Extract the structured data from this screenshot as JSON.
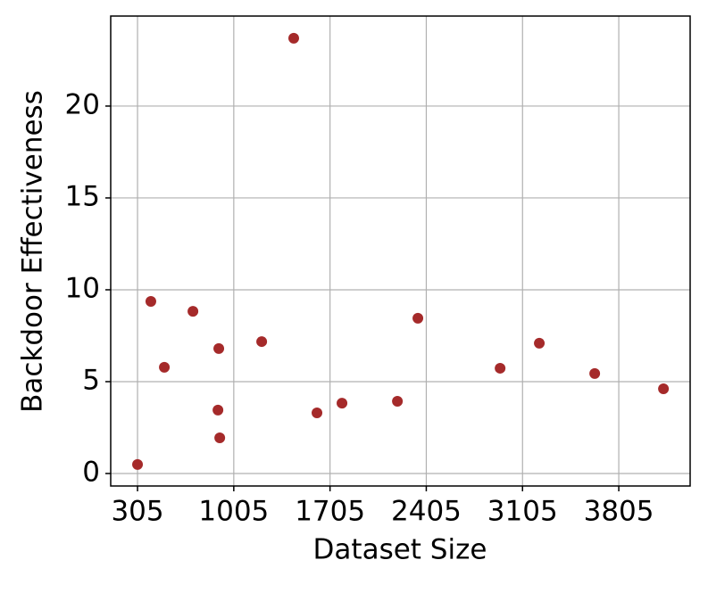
{
  "chart_data": {
    "type": "scatter",
    "xlabel": "Dataset Size",
    "ylabel": "Backdoor Effectiveness",
    "x": [
      305,
      402,
      500,
      708,
      896,
      890,
      903,
      1208,
      1441,
      1610,
      1792,
      2195,
      2344,
      2942,
      3227,
      3630,
      4130
    ],
    "y": [
      0.49,
      9.37,
      5.78,
      8.83,
      6.8,
      3.45,
      1.94,
      7.18,
      23.69,
      3.3,
      3.83,
      3.93,
      8.45,
      5.73,
      7.09,
      5.44,
      4.61
    ],
    "color": "#a52a2a",
    "xlim": [
      110,
      4324
    ],
    "ylim": [
      -0.68,
      24.9
    ],
    "xticks": [
      305,
      1005,
      1705,
      2405,
      3105,
      3805
    ],
    "yticks": [
      0,
      5,
      10,
      15,
      20
    ],
    "grid": true
  }
}
